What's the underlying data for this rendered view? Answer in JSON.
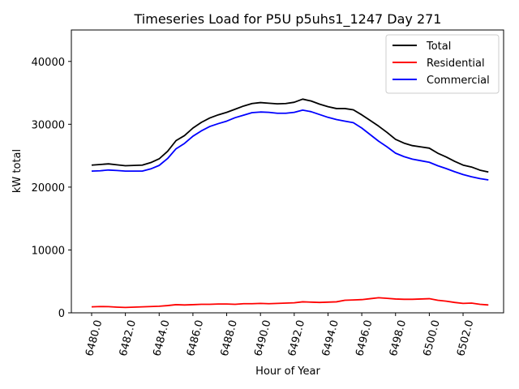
{
  "chart_data": {
    "type": "line",
    "title": "Timeseries Load for P5U p5uhs1_1247  Day 271",
    "xlabel": "Hour of Year",
    "ylabel": "kW total",
    "xlim": [
      6478.8,
      6504.4
    ],
    "ylim": [
      0,
      45000
    ],
    "xticks": [
      6480,
      6482,
      6484,
      6486,
      6488,
      6490,
      6492,
      6494,
      6496,
      6498,
      6500,
      6502
    ],
    "xtick_labels": [
      "6480.0",
      "6482.0",
      "6484.0",
      "6486.0",
      "6488.0",
      "6490.0",
      "6492.0",
      "6494.0",
      "6496.0",
      "6498.0",
      "6500.0",
      "6502.0"
    ],
    "yticks": [
      0,
      10000,
      20000,
      30000,
      40000
    ],
    "ytick_labels": [
      "0",
      "10000",
      "20000",
      "30000",
      "40000"
    ],
    "legend_position": "top-right",
    "grid": false,
    "x": [
      6480,
      6480.5,
      6481,
      6481.5,
      6482,
      6482.5,
      6483,
      6483.5,
      6484,
      6484.5,
      6485,
      6485.5,
      6486,
      6486.5,
      6487,
      6487.5,
      6488,
      6488.5,
      6489,
      6489.5,
      6490,
      6490.5,
      6491,
      6491.5,
      6492,
      6492.5,
      6493,
      6493.5,
      6494,
      6494.5,
      6495,
      6495.5,
      6496,
      6496.5,
      6497,
      6497.5,
      6498,
      6498.5,
      6499,
      6499.5,
      6500,
      6500.5,
      6501,
      6501.5,
      6502,
      6502.5,
      6503,
      6503.5
    ],
    "series": [
      {
        "name": "Total",
        "color": "#000000",
        "values": [
          23500,
          23600,
          23700,
          23550,
          23400,
          23450,
          23500,
          23900,
          24500,
          25700,
          27400,
          28200,
          29400,
          30300,
          31000,
          31500,
          31900,
          32400,
          32900,
          33300,
          33450,
          33350,
          33250,
          33300,
          33500,
          34000,
          33700,
          33200,
          32800,
          32500,
          32500,
          32300,
          31500,
          30600,
          29700,
          28700,
          27600,
          27000,
          26600,
          26400,
          26200,
          25400,
          24800,
          24100,
          23500,
          23200,
          22700,
          22400
        ]
      },
      {
        "name": "Residential",
        "color": "#ff0000",
        "values": [
          950,
          1000,
          980,
          900,
          850,
          900,
          950,
          1000,
          1050,
          1150,
          1300,
          1250,
          1300,
          1350,
          1350,
          1400,
          1400,
          1350,
          1450,
          1450,
          1500,
          1450,
          1500,
          1550,
          1600,
          1750,
          1700,
          1650,
          1700,
          1750,
          2000,
          2050,
          2100,
          2250,
          2400,
          2300,
          2200,
          2150,
          2150,
          2200,
          2250,
          2000,
          1850,
          1650,
          1500,
          1550,
          1350,
          1250
        ]
      },
      {
        "name": "Commercial",
        "color": "#0000ff",
        "values": [
          22550,
          22600,
          22720,
          22650,
          22550,
          22550,
          22550,
          22900,
          23450,
          24550,
          26100,
          26950,
          28100,
          28950,
          29650,
          30100,
          30500,
          31050,
          31450,
          31850,
          31950,
          31900,
          31750,
          31750,
          31900,
          32250,
          32000,
          31550,
          31100,
          30750,
          30500,
          30250,
          29400,
          28350,
          27300,
          26400,
          25400,
          24850,
          24450,
          24200,
          23950,
          23400,
          22950,
          22450,
          22000,
          21650,
          21350,
          21150
        ]
      }
    ]
  }
}
